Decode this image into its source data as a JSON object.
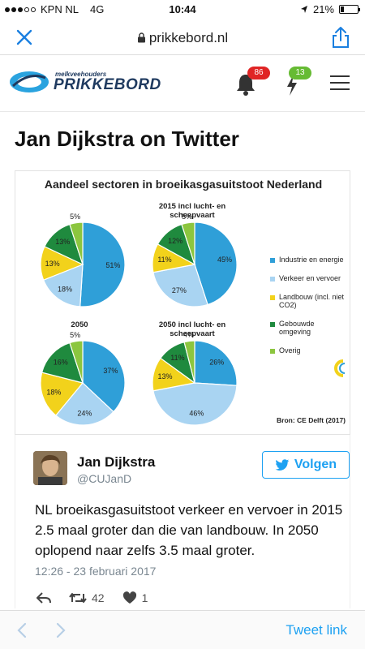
{
  "status_bar": {
    "carrier": "KPN NL",
    "network": "4G",
    "time": "10:44",
    "battery": "21%",
    "battery_level": 0.21
  },
  "browser": {
    "url": "prikkebord.nl"
  },
  "site": {
    "logo_small": "melkveehouders",
    "logo_big": "PRIKKEBORD",
    "notifications_count": "86",
    "activity_count": "13"
  },
  "page_title": "Jan Dijkstra on Twitter",
  "chart": {
    "title": "Aandeel sectoren in broeikasgasuitstoot Nederland",
    "source": "Bron: CE Delft (2017)",
    "legend": [
      "Industrie en energie",
      "Verkeer en vervoer",
      "Landbouw (incl. niet CO2)",
      "Gebouwde omgeving",
      "Overig"
    ],
    "colors": [
      "#2f9fd8",
      "#a9d4f2",
      "#f2d21b",
      "#1f8a3e",
      "#8cc63f"
    ]
  },
  "chart_data": [
    {
      "type": "pie",
      "title": "",
      "categories": [
        "Industrie en energie",
        "Verkeer en vervoer",
        "Landbouw (incl. niet CO2)",
        "Gebouwde omgeving",
        "Overig"
      ],
      "values": [
        51,
        18,
        13,
        13,
        5
      ]
    },
    {
      "type": "pie",
      "title": "2015 incl lucht- en scheepvaart",
      "categories": [
        "Industrie en energie",
        "Verkeer en vervoer",
        "Landbouw (incl. niet CO2)",
        "Gebouwde omgeving",
        "Overig"
      ],
      "values": [
        45,
        27,
        11,
        12,
        5
      ]
    },
    {
      "type": "pie",
      "title": "2050",
      "categories": [
        "Industrie en energie",
        "Verkeer en vervoer",
        "Landbouw (incl. niet CO2)",
        "Gebouwde omgeving",
        "Overig"
      ],
      "values": [
        37,
        24,
        18,
        16,
        5
      ]
    },
    {
      "type": "pie",
      "title": "2050 incl lucht- en scheepvaart",
      "categories": [
        "Industrie en energie",
        "Verkeer en vervoer",
        "Landbouw (incl. niet CO2)",
        "Gebouwde omgeving",
        "Overig"
      ],
      "values": [
        26,
        46,
        13,
        11,
        4
      ]
    }
  ],
  "tweet": {
    "author_name": "Jan Dijkstra",
    "author_handle": "@CUJanD",
    "follow_label": "Volgen",
    "text": "NL broeikasgasuitstoot verkeer en vervoer in 2015 2.5 maal groter dan die van landbouw. In 2050 oplopend naar zelfs 3.5 maal groter.",
    "timestamp": "12:26 - 23 februari 2017",
    "retweets": "42",
    "likes": "1"
  },
  "bottom_bar": {
    "link_label": "Tweet link"
  }
}
